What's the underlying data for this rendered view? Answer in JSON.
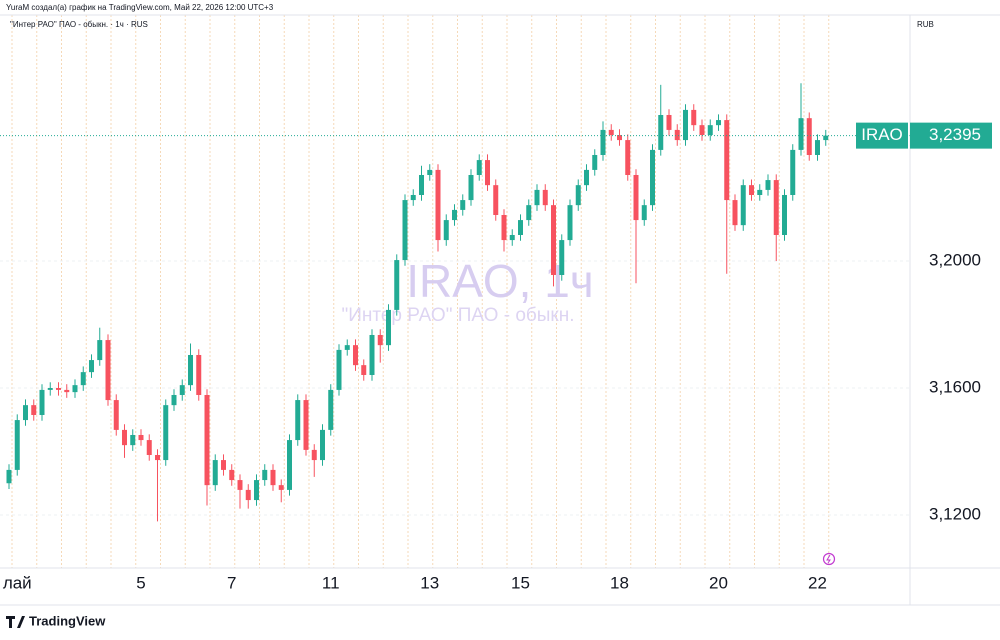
{
  "chart_data": {
    "type": "candlestick",
    "header": "YuraM создал(а) график на TradingView.com, Май 22, 2026 12:00 UTC+3",
    "legend": "\"Интер РАО\" ПАО - обыкн. · 1ч · RUS",
    "currency": "RUB",
    "watermark": "IRAO, 1ч",
    "watermark_subtitle": "\"Интер РАО\" ПАО - обыкн.",
    "symbol_label": "IRAO",
    "last_price": {
      "value": 3.2395,
      "label": "3,2395"
    },
    "logo": "TradingView",
    "up_color": "#22ab94",
    "down_color": "#f7525f",
    "ylim": [
      3.1033,
      3.2775
    ],
    "yticks": [
      {
        "value": 3.12,
        "label": "3,1200"
      },
      {
        "value": 3.16,
        "label": "3,1600"
      },
      {
        "value": 3.2,
        "label": "3,2000"
      }
    ],
    "grid": true,
    "categories": [
      null,
      "лай",
      null,
      null,
      null,
      null,
      null,
      null,
      null,
      null,
      null,
      null,
      null,
      null,
      null,
      null,
      "5",
      null,
      null,
      null,
      null,
      null,
      null,
      null,
      null,
      null,
      null,
      "7",
      null,
      null,
      null,
      null,
      null,
      null,
      null,
      null,
      null,
      null,
      null,
      "11",
      null,
      null,
      null,
      null,
      null,
      null,
      null,
      null,
      null,
      null,
      null,
      "13",
      null,
      null,
      null,
      null,
      null,
      null,
      null,
      null,
      null,
      null,
      "15",
      null,
      null,
      null,
      null,
      null,
      null,
      null,
      null,
      null,
      null,
      null,
      "18",
      null,
      null,
      null,
      null,
      null,
      null,
      null,
      null,
      null,
      null,
      null,
      "20",
      null,
      null,
      null,
      null,
      null,
      null,
      null,
      null,
      null,
      null,
      null,
      "22",
      null
    ],
    "open": [
      3.13,
      3.1342,
      3.1499,
      3.1546,
      3.1515,
      3.1594,
      3.16,
      3.1594,
      3.1587,
      3.1609,
      3.165,
      3.1688,
      3.1751,
      3.1562,
      3.1468,
      3.142,
      3.1452,
      3.1436,
      3.1389,
      3.1373,
      3.1546,
      3.1578,
      3.1609,
      3.1704,
      3.1578,
      3.1294,
      3.1373,
      3.1342,
      3.131,
      3.1279,
      3.1247,
      3.131,
      3.1342,
      3.1294,
      3.1279,
      3.1436,
      3.1562,
      3.1405,
      3.1373,
      3.1468,
      3.1594,
      3.172,
      3.1735,
      3.1672,
      3.1641,
      3.1767,
      3.1735,
      3.1846,
      3.2003,
      3.2192,
      3.2208,
      3.2271,
      3.2287,
      3.2066,
      3.2129,
      3.2161,
      3.2192,
      3.2271,
      3.2318,
      3.2239,
      3.2145,
      3.2066,
      3.2082,
      3.2129,
      3.2176,
      3.2224,
      3.2176,
      3.1956,
      3.2066,
      3.2176,
      3.2239,
      3.2287,
      3.2334,
      3.2413,
      3.2397,
      3.2381,
      3.2271,
      3.2129,
      3.2176,
      3.235,
      3.246,
      3.2413,
      3.2381,
      3.2476,
      3.2428,
      3.2397,
      3.2428,
      3.2444,
      3.2192,
      3.2113,
      3.2239,
      3.2208,
      3.2224,
      3.2255,
      3.2082,
      3.2208,
      3.235,
      3.245,
      3.2334,
      3.2381
    ],
    "high": [
      3.136,
      3.1517,
      3.1564,
      3.1564,
      3.1612,
      3.1618,
      3.1618,
      3.1612,
      3.1627,
      3.1668,
      3.1706,
      3.179,
      3.1769,
      3.158,
      3.1486,
      3.147,
      3.147,
      3.1454,
      3.1407,
      3.1564,
      3.1596,
      3.1627,
      3.174,
      3.1722,
      3.1596,
      3.1391,
      3.1391,
      3.136,
      3.1328,
      3.1297,
      3.1328,
      3.136,
      3.136,
      3.1312,
      3.1454,
      3.158,
      3.158,
      3.1423,
      3.1486,
      3.1612,
      3.1738,
      3.1753,
      3.1753,
      3.169,
      3.1785,
      3.1785,
      3.1864,
      3.2021,
      3.221,
      3.2226,
      3.23,
      3.2305,
      3.2305,
      3.2147,
      3.2179,
      3.221,
      3.2289,
      3.2336,
      3.2336,
      3.2257,
      3.2163,
      3.21,
      3.2147,
      3.2194,
      3.2242,
      3.2242,
      3.2194,
      3.2084,
      3.2194,
      3.2257,
      3.2305,
      3.2352,
      3.244,
      3.2431,
      3.2415,
      3.2399,
      3.2289,
      3.2194,
      3.2368,
      3.2555,
      3.2478,
      3.2431,
      3.2494,
      3.2494,
      3.2446,
      3.2446,
      3.2462,
      3.2462,
      3.221,
      3.2257,
      3.2257,
      3.2242,
      3.2273,
      3.2273,
      3.2226,
      3.2368,
      3.256,
      3.2468,
      3.2399,
      3.2413
    ],
    "low": [
      3.1282,
      3.1324,
      3.1481,
      3.1497,
      3.1497,
      3.1576,
      3.1576,
      3.1569,
      3.1569,
      3.1591,
      3.1632,
      3.167,
      3.1544,
      3.145,
      3.138,
      3.1402,
      3.1418,
      3.1371,
      3.118,
      3.1355,
      3.1528,
      3.156,
      3.1591,
      3.156,
      3.123,
      3.1276,
      3.1324,
      3.1292,
      3.122,
      3.122,
      3.1229,
      3.1292,
      3.1276,
      3.124,
      3.1261,
      3.1418,
      3.1387,
      3.132,
      3.1355,
      3.145,
      3.1576,
      3.1702,
      3.1654,
      3.1623,
      3.1623,
      3.168,
      3.1717,
      3.1828,
      3.1985,
      3.2174,
      3.219,
      3.2253,
      3.203,
      3.2048,
      3.2111,
      3.2143,
      3.2174,
      3.2253,
      3.2221,
      3.2127,
      3.203,
      3.2048,
      3.2064,
      3.2111,
      3.2158,
      3.2158,
      3.192,
      3.1938,
      3.2048,
      3.2158,
      3.2221,
      3.2269,
      3.2316,
      3.2379,
      3.2363,
      3.2253,
      3.193,
      3.2111,
      3.2158,
      3.2332,
      3.2395,
      3.2363,
      3.2363,
      3.241,
      3.2379,
      3.2379,
      3.241,
      3.196,
      3.2095,
      3.2095,
      3.219,
      3.219,
      3.2206,
      3.2,
      3.2064,
      3.219,
      3.2332,
      3.2316,
      3.2316,
      3.2363
    ],
    "close": [
      3.1342,
      3.1499,
      3.1546,
      3.1515,
      3.1594,
      3.16,
      3.1594,
      3.1587,
      3.1609,
      3.165,
      3.1688,
      3.1751,
      3.1562,
      3.1468,
      3.142,
      3.1452,
      3.1436,
      3.1389,
      3.1373,
      3.1546,
      3.1578,
      3.1609,
      3.1704,
      3.1578,
      3.1294,
      3.1373,
      3.1342,
      3.131,
      3.1279,
      3.1247,
      3.131,
      3.1342,
      3.1294,
      3.1279,
      3.1436,
      3.1562,
      3.1405,
      3.1373,
      3.1468,
      3.1594,
      3.172,
      3.1735,
      3.1672,
      3.1641,
      3.1767,
      3.1735,
      3.1846,
      3.2003,
      3.2192,
      3.2208,
      3.2271,
      3.2287,
      3.2066,
      3.2129,
      3.2161,
      3.2192,
      3.2271,
      3.2318,
      3.2239,
      3.2145,
      3.2066,
      3.2082,
      3.2129,
      3.2176,
      3.2224,
      3.2176,
      3.1956,
      3.2066,
      3.2176,
      3.2239,
      3.2287,
      3.2334,
      3.2413,
      3.2397,
      3.2381,
      3.2271,
      3.2129,
      3.2176,
      3.235,
      3.246,
      3.2413,
      3.2381,
      3.2476,
      3.2428,
      3.2397,
      3.2428,
      3.2444,
      3.2192,
      3.2113,
      3.2239,
      3.2208,
      3.2224,
      3.2255,
      3.2082,
      3.2208,
      3.235,
      3.245,
      3.2334,
      3.2381,
      3.2395
    ]
  }
}
